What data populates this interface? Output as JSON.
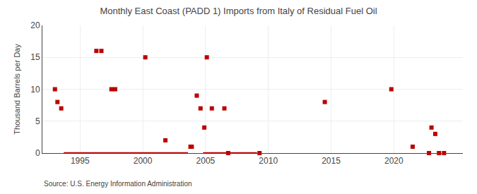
{
  "chart_data": {
    "type": "scatter",
    "title": "Monthly East Coast (PADD 1) Imports from Italy of Residual Fuel Oil",
    "ylabel": "Thousand Barrels per Day",
    "annotations": [
      "Source: U.S. Energy Information Administration"
    ],
    "xlim": [
      1992.0,
      2025.5
    ],
    "ylim": [
      0,
      20
    ],
    "xticks": [
      1995,
      2000,
      2005,
      2010,
      2015,
      2020
    ],
    "yticks": [
      0,
      5,
      10,
      15,
      20
    ],
    "grid": true,
    "series": [
      {
        "type": "scatter",
        "marker": "square",
        "color": "#bb0000",
        "x": [
          1993.0,
          1993.2,
          1993.5,
          1996.3,
          1996.7,
          1997.5,
          1997.8,
          2000.2,
          2001.8,
          2003.8,
          2003.9,
          2004.3,
          2004.6,
          2004.9,
          2005.1,
          2005.5,
          2006.5,
          2006.8,
          2009.3,
          2014.5,
          2019.8,
          2021.5,
          2022.8,
          2023.0,
          2023.3,
          2023.6,
          2024.0
        ],
        "values": [
          10,
          8,
          7,
          16,
          16,
          10,
          10,
          15,
          2,
          1,
          1,
          9,
          7,
          4,
          15,
          7,
          7,
          0,
          0,
          8,
          10,
          1,
          0,
          4,
          3,
          0,
          0
        ]
      },
      {
        "type": "line",
        "line_style": "solid",
        "color": "#bb0000",
        "x": [
          1993.7,
          2003.6
        ],
        "values": [
          0,
          0
        ]
      },
      {
        "type": "line",
        "line_style": "solid",
        "color": "#bb0000",
        "x": [
          2004.8,
          2009.1
        ],
        "values": [
          0,
          0
        ]
      }
    ]
  }
}
